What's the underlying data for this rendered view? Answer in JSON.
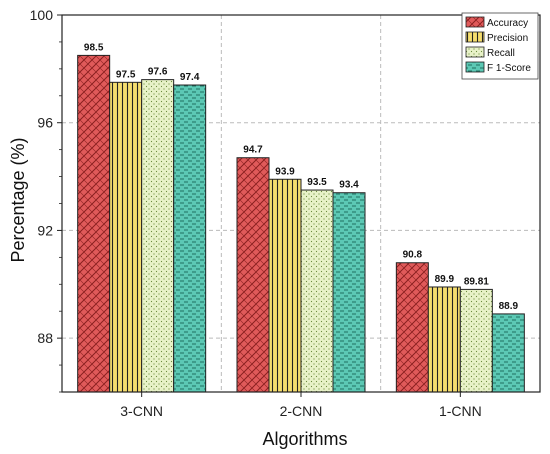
{
  "chart_data": {
    "type": "bar",
    "xlabel": "Algorithms",
    "ylabel": "Percentage (%)",
    "ylim": [
      86,
      100
    ],
    "yticks": [
      88,
      92,
      96,
      100
    ],
    "grid": true,
    "legend_position": "top-right",
    "categories": [
      "3-CNN",
      "2-CNN",
      "1-CNN"
    ],
    "series": [
      {
        "name": "Accuracy",
        "values": [
          98.5,
          94.7,
          90.8
        ],
        "labels": [
          "98.5",
          "94.7",
          "90.8"
        ],
        "color": "#e05a5a",
        "pattern": "crosshatch"
      },
      {
        "name": "Precision",
        "values": [
          97.5,
          93.9,
          89.9
        ],
        "labels": [
          "97.5",
          "93.9",
          "89.9"
        ],
        "color": "#f5dd6e",
        "pattern": "vertical-lines"
      },
      {
        "name": "Recall",
        "values": [
          97.6,
          93.5,
          89.81
        ],
        "labels": [
          "97.6",
          "93.5",
          "89.81"
        ],
        "color": "#e8f2c8",
        "pattern": "dots"
      },
      {
        "name": "F 1-Score",
        "values": [
          97.4,
          93.4,
          88.9
        ],
        "labels": [
          "97.4",
          "93.4",
          "88.9"
        ],
        "color": "#5cc8b4",
        "pattern": "dashes"
      }
    ]
  }
}
